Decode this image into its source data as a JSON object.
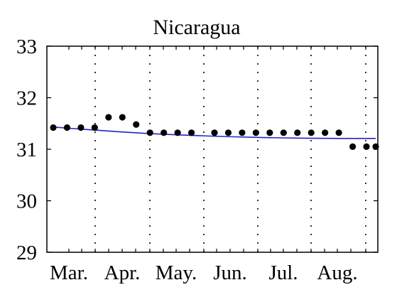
{
  "chart_data": {
    "type": "scatter",
    "title": "Nicaragua",
    "xlabel": "",
    "ylabel": "",
    "ylim": [
      29,
      33
    ],
    "yticks": [
      29,
      30,
      31,
      32,
      33
    ],
    "xlim": [
      0,
      35
    ],
    "x_tick_labels": [
      "Mar.",
      "Apr.",
      "May.",
      "Jun.",
      "Jul.",
      "Aug."
    ],
    "grid": "vertical dotted",
    "series": [
      {
        "kind": "points",
        "color": "#000000",
        "x": [
          0.5,
          2,
          3.5,
          5,
          6.5,
          8,
          9.5,
          11,
          12.5,
          14,
          15.5,
          18,
          19.5,
          21,
          22.5,
          24,
          25.5,
          27,
          28.5,
          30,
          31.5,
          33,
          34.5,
          35.5
        ],
        "y": [
          31.42,
          31.42,
          31.42,
          31.42,
          31.62,
          31.62,
          31.48,
          31.32,
          31.32,
          31.32,
          31.32,
          31.32,
          31.32,
          31.32,
          31.32,
          31.32,
          31.32,
          31.32,
          31.32,
          31.32,
          31.32,
          31.05,
          31.05,
          31.05
        ]
      },
      {
        "kind": "line",
        "color": "#2323c8",
        "x": [
          0,
          5,
          10,
          15,
          20,
          25,
          30,
          35
        ],
        "y": [
          31.43,
          31.37,
          31.31,
          31.27,
          31.24,
          31.22,
          31.21,
          31.21
        ]
      }
    ]
  }
}
